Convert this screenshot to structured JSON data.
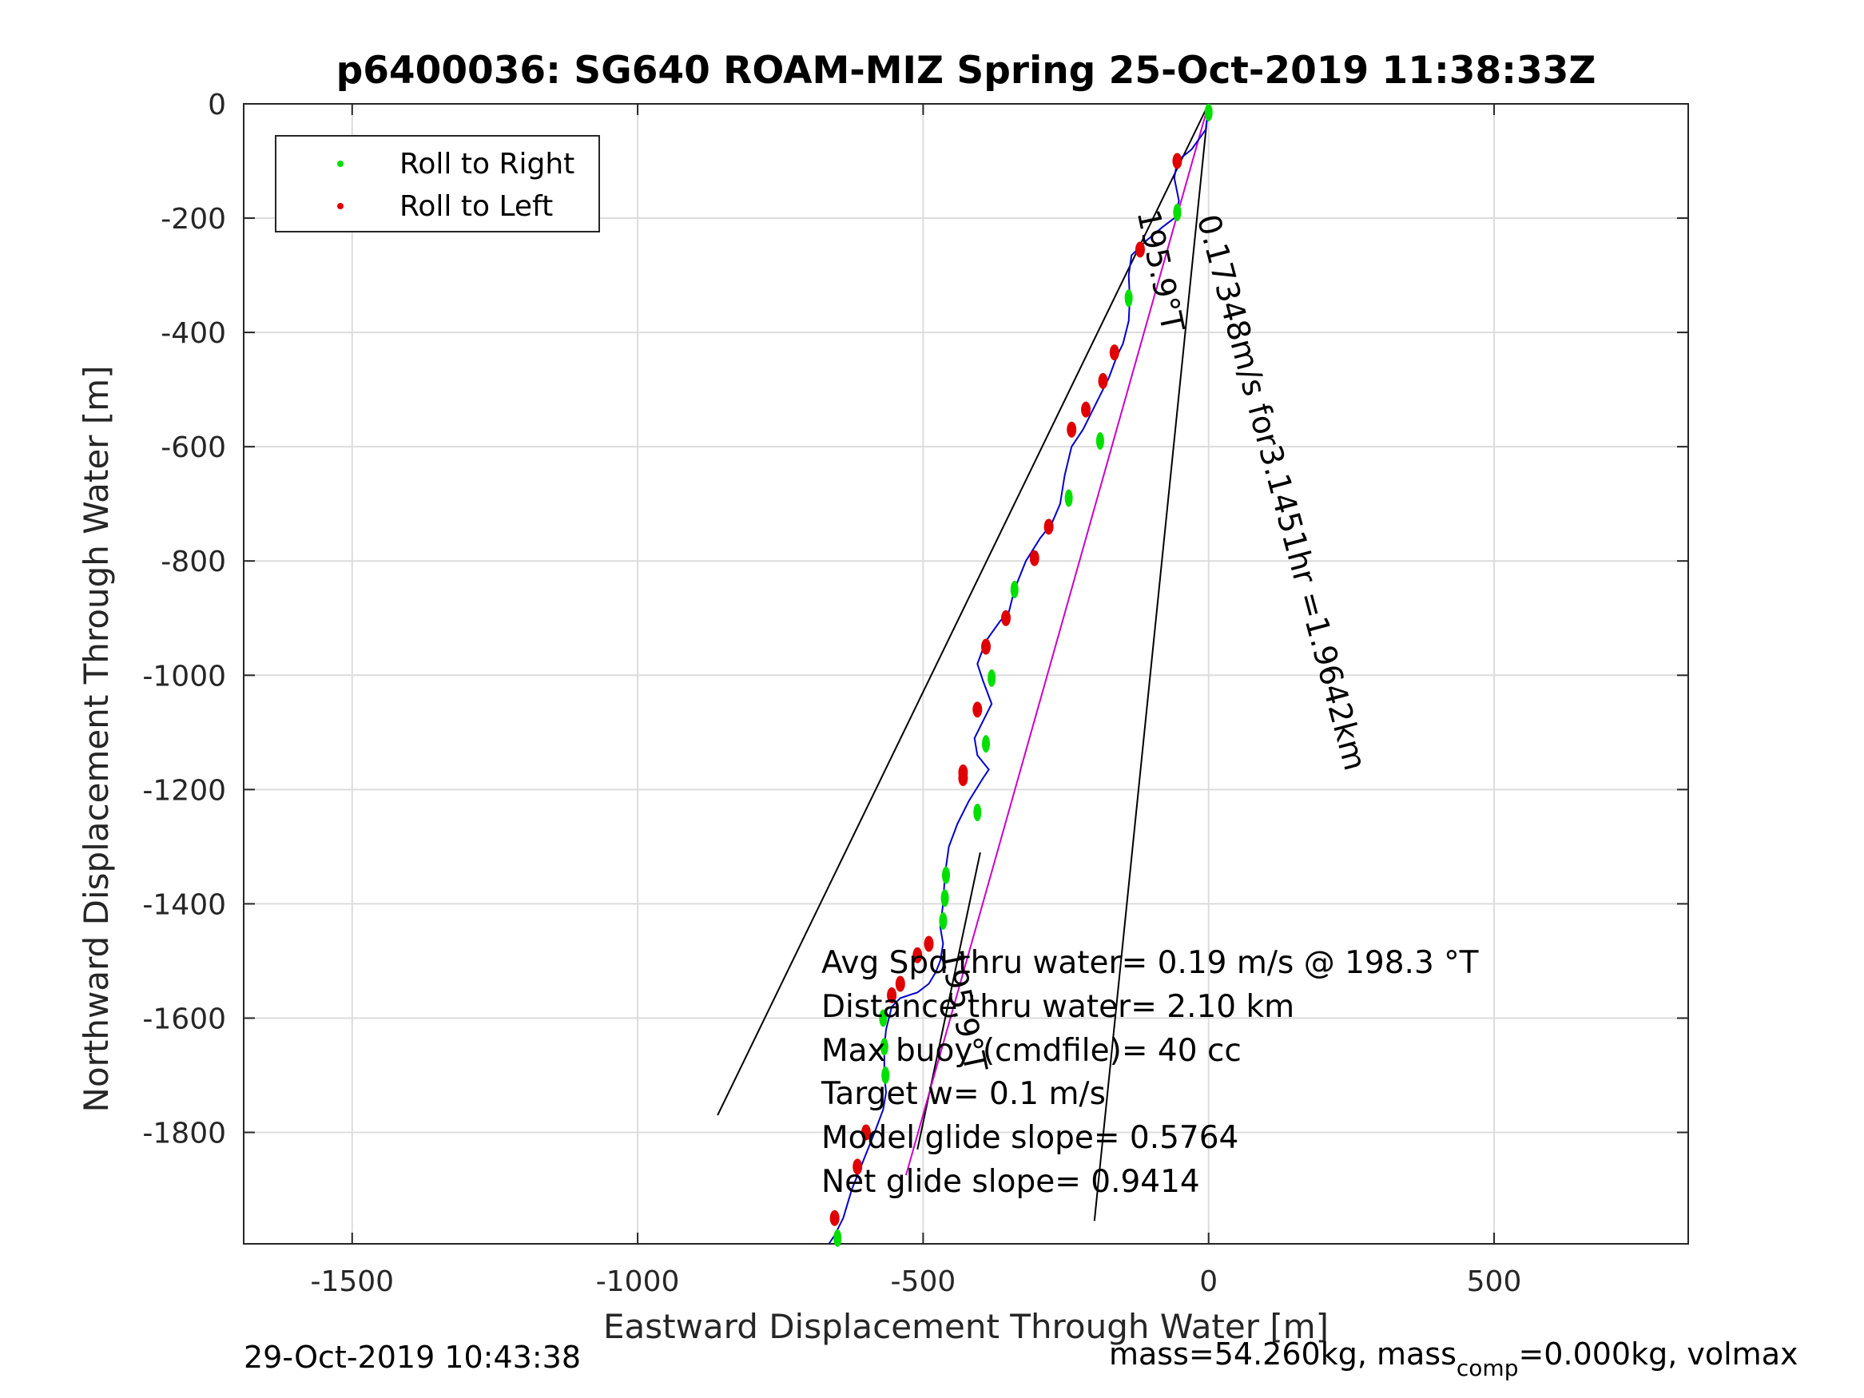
{
  "chart_data": {
    "type": "line",
    "title": "p6400036: SG640 ROAM-MIZ Spring 25-Oct-2019 11:38:33Z",
    "xlabel": "Eastward Displacement Through Water [m]",
    "ylabel": "Northward Displacement Through Water [m]",
    "xlim": [
      -1690,
      840
    ],
    "ylim": [
      -1995,
      0
    ],
    "xticks": [
      -1500,
      -1000,
      -500,
      0,
      500
    ],
    "yticks": [
      0,
      -200,
      -400,
      -600,
      -800,
      -1000,
      -1200,
      -1400,
      -1600,
      -1800
    ],
    "grid": true,
    "legend": {
      "placement": "top-left",
      "entries": [
        {
          "label": "Roll to Right",
          "color": "#00e000"
        },
        {
          "label": "Roll to Left",
          "color": "#e00000"
        }
      ]
    },
    "track": {
      "color": "#0000cc",
      "x": [
        0,
        -5,
        -30,
        -55,
        -60,
        -52,
        -60,
        -80,
        -110,
        -135,
        -140,
        -138,
        -140,
        -150,
        -160,
        -175,
        -190,
        -205,
        -220,
        -240,
        -252,
        -260,
        -275,
        -295,
        -320,
        -340,
        -350,
        -365,
        -390,
        -405,
        -395,
        -380,
        -395,
        -410,
        -405,
        -385,
        -395,
        -420,
        -440,
        -455,
        -462,
        -465,
        -470,
        -465,
        -470,
        -478,
        -490,
        -510,
        -540,
        -555,
        -565,
        -568,
        -568,
        -565,
        -570,
        -585,
        -605,
        -625,
        -640,
        -655,
        -665
      ],
      "y": [
        0,
        -45,
        -80,
        -100,
        -130,
        -170,
        -200,
        -215,
        -240,
        -265,
        -300,
        -340,
        -380,
        -420,
        -440,
        -480,
        -510,
        -540,
        -570,
        -600,
        -650,
        -700,
        -735,
        -760,
        -800,
        -850,
        -890,
        -905,
        -940,
        -980,
        -1010,
        -1050,
        -1080,
        -1110,
        -1140,
        -1165,
        -1180,
        -1220,
        -1260,
        -1300,
        -1350,
        -1400,
        -1440,
        -1470,
        -1500,
        -1520,
        -1540,
        -1555,
        -1565,
        -1580,
        -1620,
        -1650,
        -1700,
        -1730,
        -1760,
        -1800,
        -1850,
        -1900,
        -1950,
        -1980,
        -1995
      ]
    },
    "roll_right_x": [
      0,
      -55,
      -140,
      -190,
      -245,
      -340,
      -380,
      -390,
      -405,
      -460,
      -462,
      -465,
      -570,
      -568,
      -566,
      -650
    ],
    "roll_right_y": [
      -15,
      -190,
      -340,
      -590,
      -690,
      -850,
      -1005,
      -1120,
      -1240,
      -1350,
      -1390,
      -1430,
      -1600,
      -1650,
      -1700,
      -1985
    ],
    "roll_left_x": [
      -55,
      -120,
      -165,
      -185,
      -215,
      -240,
      -280,
      -305,
      -355,
      -390,
      -405,
      -430,
      -430,
      -490,
      -510,
      -540,
      -555,
      -600,
      -615,
      -655
    ],
    "roll_left_y": [
      -100,
      -255,
      -435,
      -485,
      -535,
      -570,
      -740,
      -795,
      -900,
      -950,
      -1060,
      -1170,
      -1180,
      -1470,
      -1490,
      -1540,
      -1560,
      -1800,
      -1860,
      -1950
    ],
    "model_line": {
      "color": "#cc00cc",
      "from": [
        0,
        0
      ],
      "to": [
        -530,
        -1875
      ]
    },
    "reference_lines": [
      {
        "from": [
          0,
          0
        ],
        "to": [
          -860,
          -1770
        ]
      },
      {
        "from": [
          0,
          0
        ],
        "to": [
          -200,
          -1955
        ]
      },
      {
        "from": [
          -400,
          -1310
        ],
        "to": [
          -510,
          -1830
        ]
      }
    ],
    "line_labels": [
      {
        "text": "195.9°T",
        "at": [
          -125,
          -190
        ],
        "rotation": 78
      },
      {
        "text": "0.17348m/s for3.1451hr =1.9642km",
        "at": [
          -20,
          -200
        ],
        "rotation": 75
      },
      {
        "text": "195.9°T",
        "at": [
          -470,
          -1485
        ],
        "rotation": 78
      }
    ],
    "annotations": [
      "Avg Spd thru water=  0.19 m/s @ 198.3 °T",
      "Distance thru water=  2.10 km",
      "Max buoy (cmdfile)= 40 cc",
      "Target w= 0.1 m/s",
      "Model glide slope= 0.5764",
      "Net glide slope= 0.9414"
    ]
  },
  "footer": {
    "timestamp": "29-Oct-2019 10:43:38",
    "mass_prefix": "mass=54.260kg, mass",
    "mass_sub": "comp",
    "mass_suffix": "=0.000kg, volmax"
  }
}
